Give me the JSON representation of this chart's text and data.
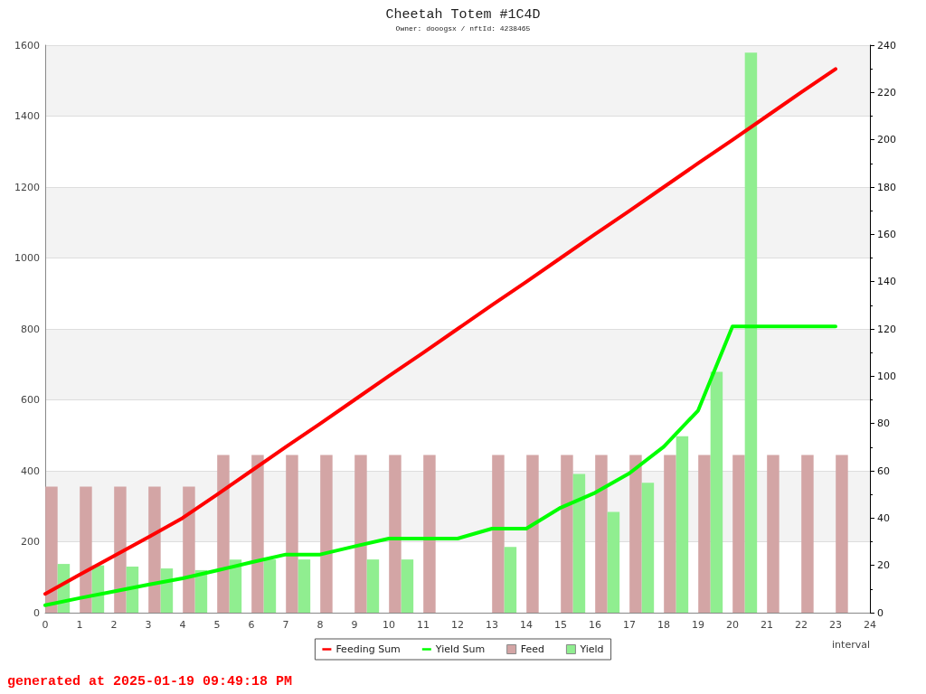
{
  "chart_data": {
    "type": "line",
    "title": "Cheetah Totem #1C4D",
    "subtitle": "Owner: dooogsx / nftId: 4238465",
    "xlabel": "interval",
    "x": [
      0,
      1,
      2,
      3,
      4,
      5,
      6,
      7,
      8,
      9,
      10,
      11,
      12,
      13,
      14,
      15,
      16,
      17,
      18,
      19,
      20,
      21,
      22,
      23
    ],
    "xlim": [
      0,
      24
    ],
    "xticks": [
      0,
      1,
      2,
      3,
      4,
      5,
      6,
      7,
      8,
      9,
      10,
      11,
      12,
      13,
      14,
      15,
      16,
      17,
      18,
      19,
      20,
      21,
      22,
      23,
      24
    ],
    "ylim": [
      0,
      1600
    ],
    "yticks": [
      0,
      200,
      400,
      600,
      800,
      1000,
      1200,
      1400,
      1600
    ],
    "y2lim": [
      0,
      240
    ],
    "y2ticks": [
      0,
      {
        "value": 10,
        "label": null
      },
      20,
      {
        "value": 30,
        "label": null
      },
      40,
      {
        "value": 50,
        "label": null
      },
      60,
      {
        "value": 70,
        "label": null
      },
      80,
      {
        "value": 90,
        "label": null
      },
      100,
      {
        "value": 110,
        "label": null
      },
      120,
      {
        "value": 130,
        "label": null
      },
      140,
      {
        "value": 150,
        "label": null
      },
      160,
      {
        "value": 170,
        "label": null
      },
      180,
      {
        "value": 190,
        "label": null
      },
      200,
      {
        "value": 210,
        "label": null
      },
      220,
      {
        "value": 230,
        "label": null
      },
      240
    ],
    "series": [
      {
        "name": "Feeding Sum",
        "color": "#ff0000",
        "values": [
          53,
          107,
          160,
          213,
          267,
          333,
          400,
          467,
          533,
          600,
          667,
          733,
          800,
          867,
          933,
          1000,
          1067,
          1133,
          1200,
          1267,
          1333,
          1400,
          1467,
          1533
        ]
      },
      {
        "name": "Yield Sum",
        "color": "#00ff00",
        "values": [
          21,
          41,
          60,
          79,
          97,
          119,
          142,
          164,
          164,
          187,
          209,
          209,
          209,
          237,
          237,
          296,
          338,
          393,
          468,
          570,
          807,
          807,
          807,
          807
        ]
      },
      {
        "name": "Feed",
        "type": "bar",
        "color": "#d3a5a5",
        "axis": "y2",
        "x": [
          0.36,
          1.36,
          2.36,
          3.36,
          4.36,
          5.36,
          6.36,
          7.36,
          8.36,
          9.36,
          10.36,
          11.36,
          13.36,
          14.36,
          15.36,
          16.36,
          17.36,
          18.36,
          19.36,
          20.36,
          21.36,
          22.36,
          23.36
        ],
        "values": [
          53.3,
          53.3,
          53.3,
          53.3,
          53.3,
          66.7,
          66.7,
          66.7,
          66.7,
          66.7,
          66.7,
          66.7,
          66.7,
          66.7,
          66.7,
          66.7,
          66.7,
          66.7,
          66.7,
          66.7,
          66.7,
          66.7,
          66.7
        ]
      },
      {
        "name": "Yield",
        "type": "bar",
        "color": "#90ee90",
        "axis": "y2",
        "x": [
          0.36,
          1.36,
          2.36,
          3.36,
          4.36,
          5.36,
          6.36,
          7.36,
          9.36,
          10.36,
          13.36,
          15.36,
          16.36,
          17.36,
          18.36,
          19.36,
          20.36
        ],
        "values": [
          20.6,
          20,
          19.5,
          18.7,
          18,
          22.5,
          22.5,
          22.5,
          22.5,
          22.5,
          27.8,
          58.7,
          42.6,
          54.9,
          74.6,
          101.8,
          236.8
        ]
      }
    ],
    "grid": "y",
    "legend": "bottom",
    "marker": "none",
    "line_style": "solid",
    "annotations": [
      "generated at 2025-01-19 09:49:18 PM"
    ]
  }
}
